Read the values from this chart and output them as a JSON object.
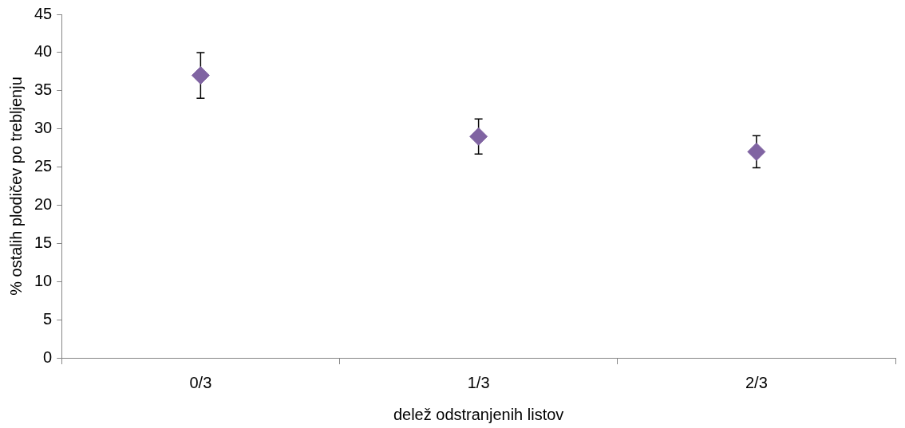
{
  "chart_data": {
    "type": "scatter",
    "xlabel": "delež odstranjenih listov",
    "ylabel": "% ostalih plodičev po trebljenju",
    "categories": [
      "0/3",
      "1/3",
      "2/3"
    ],
    "values": [
      37,
      29,
      27
    ],
    "errors": [
      3,
      2.3,
      2.1
    ],
    "color": "#8064a2",
    "marker": "diamond",
    "ylim": [
      0,
      45
    ],
    "yticks": [
      0,
      5,
      10,
      15,
      20,
      25,
      30,
      35,
      40,
      45
    ],
    "grid": false,
    "legend": false
  }
}
